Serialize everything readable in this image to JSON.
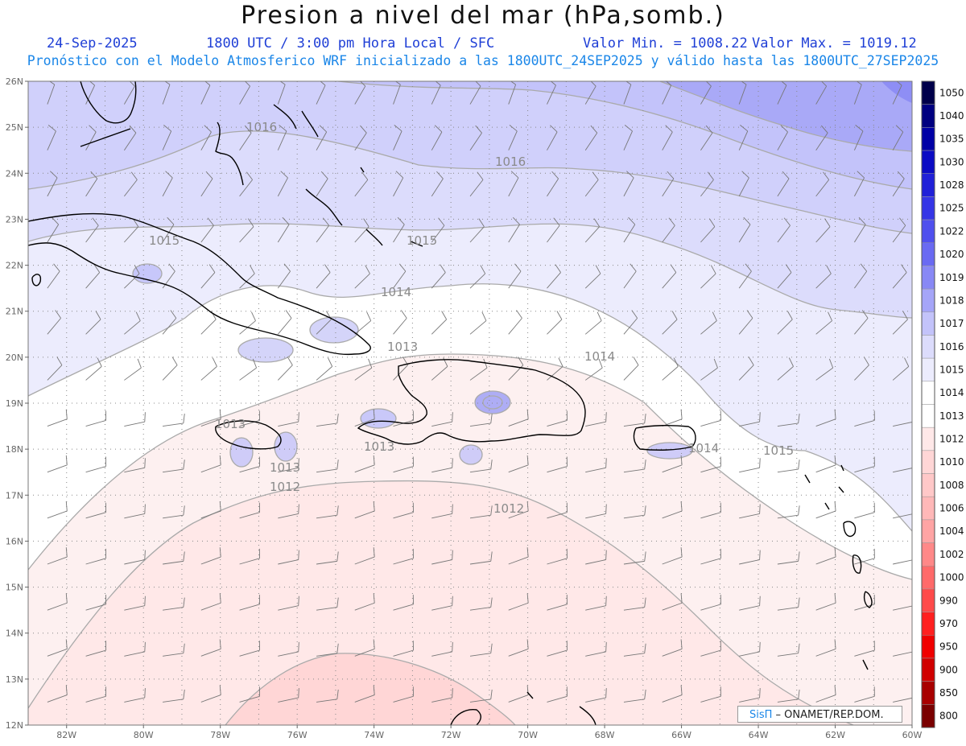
{
  "header": {
    "title": "Presion a nivel del mar (hPa,somb.)",
    "date": "24-Sep-2025",
    "time": "1800 UTC / 3:00 pm Hora Local / SFC",
    "vmin": "Valor Min. = 1008.22",
    "vmax": "Valor Max. = 1019.12",
    "subtitle": "Pronóstico con el Modelo Atmosferico WRF inicializado a las 1800UTC_24SEP2025 y válido hasta las  1800UTC_27SEP2025"
  },
  "map": {
    "lat_labels": [
      "26N",
      "25N",
      "24N",
      "23N",
      "22N",
      "21N",
      "20N",
      "19N",
      "18N",
      "17N",
      "16N",
      "15N",
      "14N",
      "13N",
      "12N"
    ],
    "lon_labels": [
      "82W",
      "80W",
      "78W",
      "76W",
      "74W",
      "72W",
      "70W",
      "68W",
      "66W",
      "64W",
      "62W",
      "60W"
    ],
    "isobar_labels": [
      {
        "text": "1016",
        "id": "a"
      },
      {
        "text": "1016",
        "id": "b"
      },
      {
        "text": "1015",
        "id": "c"
      },
      {
        "text": "1014",
        "id": "d"
      },
      {
        "text": "1014",
        "id": "e"
      },
      {
        "text": "1013",
        "id": "f"
      },
      {
        "text": "1013",
        "id": "g"
      },
      {
        "text": "1013",
        "id": "h"
      },
      {
        "text": "1012",
        "id": "i"
      },
      {
        "text": "1012",
        "id": "j"
      },
      {
        "text": "1014",
        "id": "k"
      },
      {
        "text": "1015",
        "id": "l"
      },
      {
        "text": "1013",
        "id": "m"
      },
      {
        "text": "1015",
        "id": "n"
      }
    ]
  },
  "colorbar": {
    "levels": [
      "1050",
      "1040",
      "1035",
      "1030",
      "1028",
      "1025",
      "1022",
      "1020",
      "1019",
      "1018",
      "1017",
      "1016",
      "1015",
      "1014",
      "1013",
      "1012",
      "1010",
      "1008",
      "1006",
      "1004",
      "1002",
      "1000",
      "990",
      "970",
      "950",
      "900",
      "850",
      "800"
    ],
    "colors": [
      "#00004a",
      "#000080",
      "#0000a6",
      "#0b0bc4",
      "#2020d8",
      "#3535e6",
      "#5050ee",
      "#6a6af2",
      "#8888f5",
      "#a5a5f8",
      "#c3c3fa",
      "#dcdcfc",
      "#ececfd",
      "#ffffff",
      "#ffffff",
      "#ffe8e8",
      "#ffd6d6",
      "#ffc8c8",
      "#ffb8b8",
      "#ffa4a4",
      "#ff8888",
      "#ff6a6a",
      "#ff4a4a",
      "#ff2020",
      "#f00000",
      "#d00000",
      "#a80000",
      "#7a0000"
    ]
  },
  "credit": {
    "brand": "SisΠ",
    "org": " – ONAMET/REP.DOM."
  }
}
